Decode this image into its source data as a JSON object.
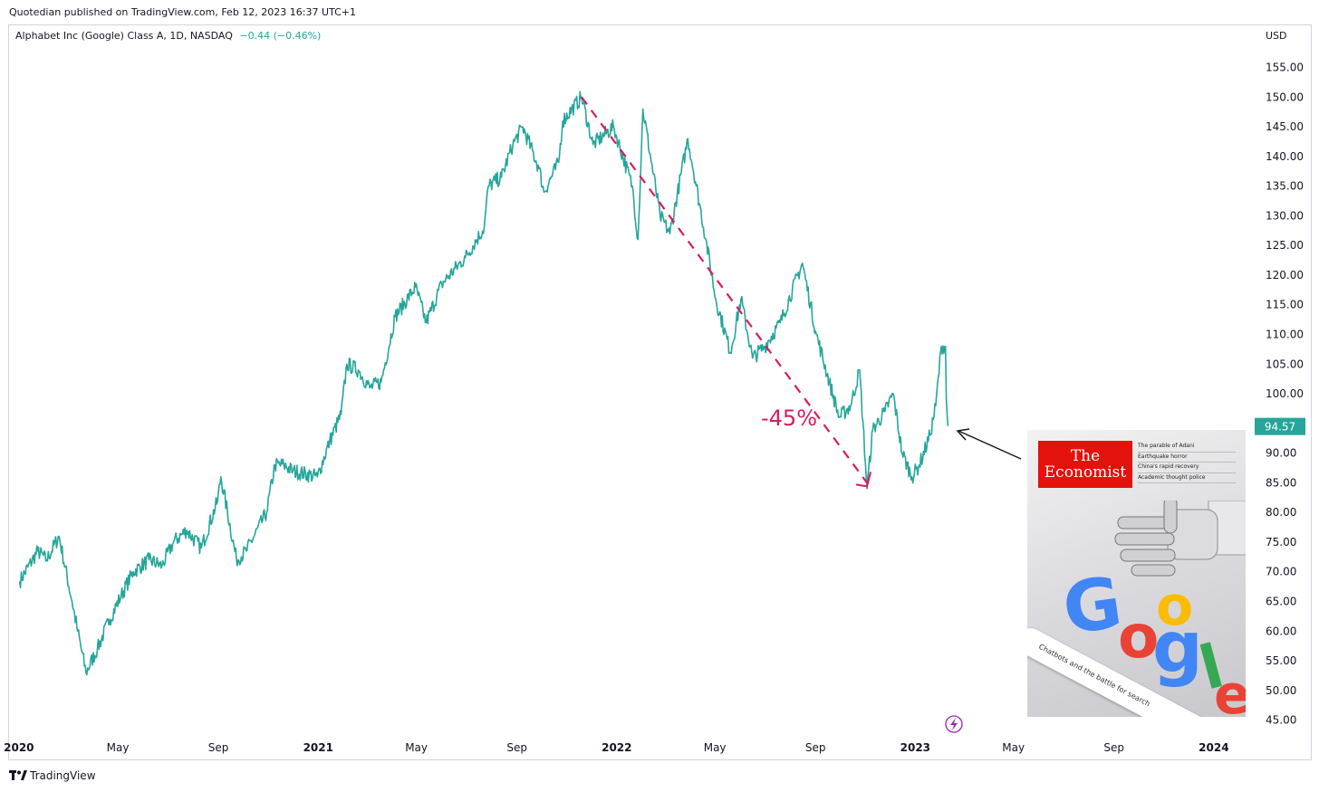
{
  "header": {
    "published": "Quotedian published on TradingView.com, Feb 12, 2023 16:37 UTC+1"
  },
  "legend": {
    "symbol": "Alphabet Inc (Google) Class A, 1D, NASDAQ",
    "change": "−0.44 (−0.46%)"
  },
  "axis": {
    "currency": "USD"
  },
  "last_price": {
    "value": "94.57"
  },
  "annotation": {
    "drawdown": "-45%"
  },
  "cover": {
    "line1": "The",
    "line2": "Economist",
    "headlines": [
      "The parable of Adani",
      "Earthquake horror",
      "China's rapid recovery",
      "Academic thought police"
    ],
    "search_text": "Chatbots and the battle for search",
    "letters": [
      "G",
      "o",
      "o",
      "g",
      "l",
      "e"
    ]
  },
  "footer": {
    "brand": "TradingView"
  },
  "colors": {
    "line": "#26a69a",
    "annotation": "#d81b60",
    "price_tag": "#26a69a"
  },
  "chart_data": {
    "type": "line",
    "series": [
      {
        "values": [
          [
            "2020-01-02",
            68.4
          ],
          [
            "2020-01-24",
            73.5
          ],
          [
            "2020-02-04",
            72.0
          ],
          [
            "2020-02-19",
            76.0
          ],
          [
            "2020-03-06",
            65.0
          ],
          [
            "2020-03-13",
            60.0
          ],
          [
            "2020-03-23",
            53.0
          ],
          [
            "2020-04-06",
            57.0
          ],
          [
            "2020-04-21",
            62.0
          ],
          [
            "2020-05-05",
            66.0
          ],
          [
            "2020-05-20",
            70.0
          ],
          [
            "2020-06-08",
            72.0
          ],
          [
            "2020-06-24",
            71.0
          ],
          [
            "2020-07-08",
            75.0
          ],
          [
            "2020-07-24",
            77.0
          ],
          [
            "2020-08-11",
            74.0
          ],
          [
            "2020-08-31",
            82.0
          ],
          [
            "2020-09-04",
            86.0
          ],
          [
            "2020-09-23",
            72.0
          ],
          [
            "2020-10-05",
            73.5
          ],
          [
            "2020-10-30",
            80.0
          ],
          [
            "2020-11-09",
            88.0
          ],
          [
            "2020-11-20",
            88.0
          ],
          [
            "2020-12-01",
            87.0
          ],
          [
            "2020-12-31",
            86.0
          ],
          [
            "2021-01-15",
            92.0
          ],
          [
            "2021-01-29",
            96.5
          ],
          [
            "2021-02-05",
            105.0
          ],
          [
            "2021-02-19",
            104.0
          ],
          [
            "2021-03-05",
            101.0
          ],
          [
            "2021-03-19",
            102.0
          ],
          [
            "2021-04-05",
            113.0
          ],
          [
            "2021-04-30",
            118.0
          ],
          [
            "2021-05-13",
            112.0
          ],
          [
            "2021-06-01",
            118.5
          ],
          [
            "2021-06-30",
            123.0
          ],
          [
            "2021-07-23",
            128.0
          ],
          [
            "2021-07-28",
            135.0
          ],
          [
            "2021-08-13",
            136.5
          ],
          [
            "2021-08-27",
            142.0
          ],
          [
            "2021-09-08",
            145.0
          ],
          [
            "2021-09-28",
            138.0
          ],
          [
            "2021-10-04",
            134.0
          ],
          [
            "2021-10-22",
            139.0
          ],
          [
            "2021-10-27",
            146.0
          ],
          [
            "2021-11-19",
            150.0
          ],
          [
            "2021-12-03",
            142.0
          ],
          [
            "2021-12-28",
            145.0
          ],
          [
            "2022-01-20",
            135.0
          ],
          [
            "2022-01-27",
            126.0
          ],
          [
            "2022-02-02",
            148.0
          ],
          [
            "2022-02-23",
            130.0
          ],
          [
            "2022-03-07",
            127.0
          ],
          [
            "2022-03-29",
            143.0
          ],
          [
            "2022-04-20",
            126.0
          ],
          [
            "2022-05-02",
            116.0
          ],
          [
            "2022-05-20",
            107.0
          ],
          [
            "2022-06-02",
            116.0
          ],
          [
            "2022-06-16",
            106.0
          ],
          [
            "2022-07-01",
            108.0
          ],
          [
            "2022-07-20",
            112.0
          ],
          [
            "2022-08-16",
            122.0
          ],
          [
            "2022-09-02",
            110.0
          ],
          [
            "2022-09-30",
            96.0
          ],
          [
            "2022-10-14",
            98.0
          ],
          [
            "2022-10-25",
            104.0
          ],
          [
            "2022-11-03",
            84.0
          ],
          [
            "2022-11-10",
            94.0
          ],
          [
            "2022-11-25",
            97.0
          ],
          [
            "2022-12-05",
            100.0
          ],
          [
            "2022-12-16",
            90.0
          ],
          [
            "2022-12-28",
            86.0
          ],
          [
            "2023-01-06",
            88.0
          ],
          [
            "2023-01-19",
            93.0
          ],
          [
            "2023-01-26",
            98.0
          ],
          [
            "2023-02-02",
            108.0
          ],
          [
            "2023-02-07",
            108.0
          ],
          [
            "2023-02-08",
            99.0
          ],
          [
            "2023-02-10",
            94.57
          ]
        ]
      }
    ],
    "y_ticks": [
      "155.00",
      "150.00",
      "145.00",
      "140.00",
      "135.00",
      "130.00",
      "125.00",
      "120.00",
      "115.00",
      "110.00",
      "105.00",
      "100.00",
      "95.00",
      "90.00",
      "85.00",
      "80.00",
      "75.00",
      "70.00",
      "65.00",
      "60.00",
      "55.00",
      "50.00",
      "45.00"
    ],
    "x_ticks": [
      {
        "date": "2020-01-01",
        "label": "2020",
        "bold": true
      },
      {
        "date": "2020-05-01",
        "label": "May",
        "bold": false
      },
      {
        "date": "2020-09-01",
        "label": "Sep",
        "bold": false
      },
      {
        "date": "2021-01-01",
        "label": "2021",
        "bold": true
      },
      {
        "date": "2021-05-01",
        "label": "May",
        "bold": false
      },
      {
        "date": "2021-09-01",
        "label": "Sep",
        "bold": false
      },
      {
        "date": "2022-01-01",
        "label": "2022",
        "bold": true
      },
      {
        "date": "2022-05-01",
        "label": "May",
        "bold": false
      },
      {
        "date": "2022-09-01",
        "label": "Sep",
        "bold": false
      },
      {
        "date": "2023-01-01",
        "label": "2023",
        "bold": true
      },
      {
        "date": "2023-05-01",
        "label": "May",
        "bold": false
      },
      {
        "date": "2023-09-01",
        "label": "Sep",
        "bold": false
      },
      {
        "date": "2024-01-01",
        "label": "2024",
        "bold": true
      }
    ],
    "xlim": [
      "2019-12-20",
      "2024-02-20"
    ],
    "ylim": [
      42.5,
      159.5
    ],
    "trendline": [
      [
        "2021-11-19",
        150.0
      ],
      [
        "2022-11-03",
        85.0
      ]
    ],
    "grid": false
  }
}
